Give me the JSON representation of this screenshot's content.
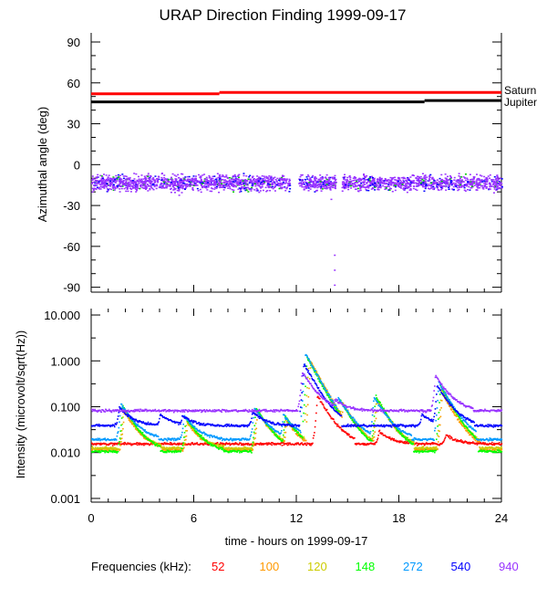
{
  "chart_data": [
    {
      "type": "scatter",
      "title": "URAP Direction Finding  1999-09-17",
      "ylabel": "Azimuthal angle (deg)",
      "xlim": [
        0,
        24
      ],
      "ylim": [
        -93.6,
        96.7
      ],
      "yticks": [
        90,
        60,
        30,
        0,
        -30,
        -60,
        -90
      ],
      "reference_lines": [
        {
          "name": "Saturn",
          "color": "#ff0000",
          "segments": [
            [
              0,
              7.5,
              52
            ],
            [
              7.5,
              24,
              53
            ]
          ]
        },
        {
          "name": "Jupiter",
          "color": "#000000",
          "segments": [
            [
              0,
              19.5,
              46
            ],
            [
              19.5,
              24,
              47
            ]
          ]
        }
      ],
      "scatter_series": {
        "name": "940",
        "color": "#9933ff",
        "mean": -13,
        "spread": 8,
        "gaps": [
          [
            11.6,
            12.1
          ],
          [
            14.3,
            14.6
          ]
        ],
        "outliers": [
          [
            14.2,
            -66
          ],
          [
            14.2,
            -77
          ],
          [
            14.2,
            -88
          ],
          [
            14.0,
            -25
          ],
          [
            5.1,
            -22
          ]
        ]
      }
    },
    {
      "type": "line",
      "ylabel": "Intensity (microvolt/sqrt(Hz))",
      "xlabel": "time - hours on 1999-09-17",
      "xlim": [
        0,
        24
      ],
      "xticks": [
        0,
        6,
        12,
        18,
        24
      ],
      "yscale": "log",
      "ylim": [
        0.00083,
        13.8
      ],
      "yticks": [
        "10.000",
        "1.000",
        "0.100",
        "0.010",
        "0.001"
      ],
      "legend_label": "Frequencies (kHz):",
      "series": [
        {
          "name": "52",
          "color": "#ff0000",
          "background": 0.016,
          "bursts": [
            [
              13.2,
              0.18
            ],
            [
              16.8,
              0.03
            ],
            [
              20.7,
              0.025
            ]
          ]
        },
        {
          "name": "100",
          "color": "#ff9900",
          "background": 0.012,
          "bursts": [
            [
              1.9,
              0.08
            ],
            [
              5.6,
              0.045
            ],
            [
              9.7,
              0.08
            ],
            [
              11.4,
              0.05
            ],
            [
              12.8,
              1.0
            ],
            [
              14.7,
              0.12
            ],
            [
              16.7,
              0.14
            ],
            [
              20.5,
              0.2
            ]
          ]
        },
        {
          "name": "120",
          "color": "#cccc00",
          "background": 0.013,
          "bursts": [
            [
              1.85,
              0.09
            ],
            [
              5.55,
              0.05
            ],
            [
              9.65,
              0.09
            ],
            [
              11.35,
              0.06
            ],
            [
              12.7,
              1.1
            ],
            [
              14.6,
              0.13
            ],
            [
              16.65,
              0.16
            ],
            [
              20.45,
              0.25
            ]
          ]
        },
        {
          "name": "148",
          "color": "#00ff00",
          "background": 0.011,
          "bursts": [
            [
              1.8,
              0.11
            ],
            [
              5.5,
              0.06
            ],
            [
              9.6,
              0.1
            ],
            [
              11.3,
              0.065
            ],
            [
              12.6,
              1.2
            ],
            [
              14.5,
              0.15
            ],
            [
              16.6,
              0.18
            ],
            [
              20.4,
              0.3
            ]
          ]
        },
        {
          "name": "272",
          "color": "#0099ff",
          "background": 0.02,
          "bursts": [
            [
              1.7,
              0.12
            ],
            [
              5.4,
              0.065
            ],
            [
              9.5,
              0.1
            ],
            [
              11.2,
              0.07
            ],
            [
              12.5,
              1.5
            ],
            [
              14.4,
              0.17
            ],
            [
              16.5,
              0.17
            ],
            [
              20.3,
              0.35
            ]
          ]
        },
        {
          "name": "540",
          "color": "#0000ff",
          "background": 0.04,
          "bursts": [
            [
              1.6,
              0.1
            ],
            [
              4.0,
              0.07
            ],
            [
              5.3,
              0.065
            ],
            [
              9.4,
              0.08
            ],
            [
              12.4,
              0.9
            ],
            [
              19.3,
              0.07
            ],
            [
              20.2,
              0.3
            ]
          ]
        },
        {
          "name": "940",
          "color": "#9933ff",
          "background": 0.085,
          "bursts": [
            [
              12.3,
              0.6
            ],
            [
              14.2,
              0.15
            ],
            [
              20.1,
              0.5
            ]
          ]
        }
      ]
    }
  ]
}
